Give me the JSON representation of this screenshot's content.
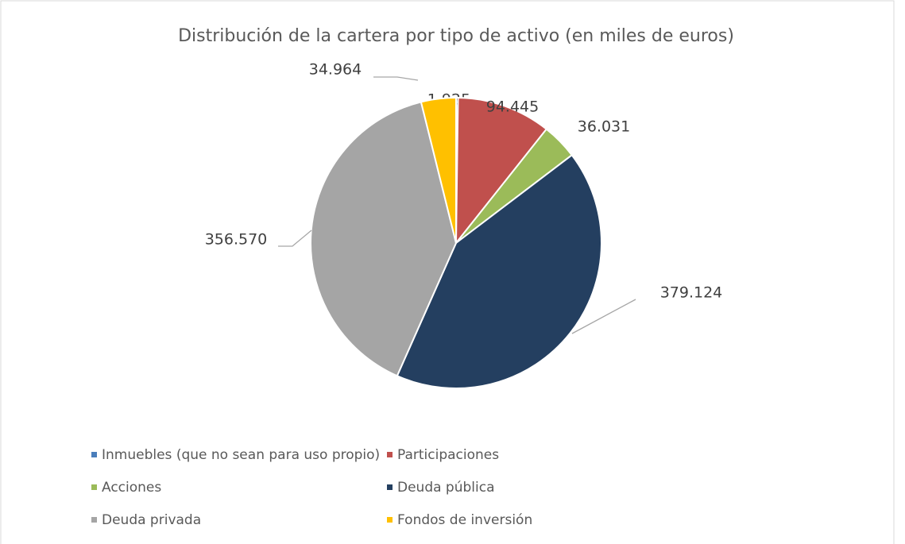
{
  "chart_data": {
    "type": "pie",
    "title": "Distribución de la cartera por tipo de activo (en miles de euros)",
    "categories": [
      "Inmuebles (que no sean para uso propio)",
      "Participaciones",
      "Acciones",
      "Deuda pública",
      "Deuda privada",
      "Fondos de inversión"
    ],
    "values": [
      1925,
      94445,
      36031,
      379124,
      356570,
      34964
    ],
    "value_labels": [
      "1.925",
      "94.445",
      "36.031",
      "379.124",
      "356.570",
      "34.964"
    ],
    "colors": [
      "#4a7ebb",
      "#c0504d",
      "#9bbb59",
      "#243f60",
      "#a5a5a5",
      "#ffc000"
    ],
    "legend": "bottom"
  }
}
